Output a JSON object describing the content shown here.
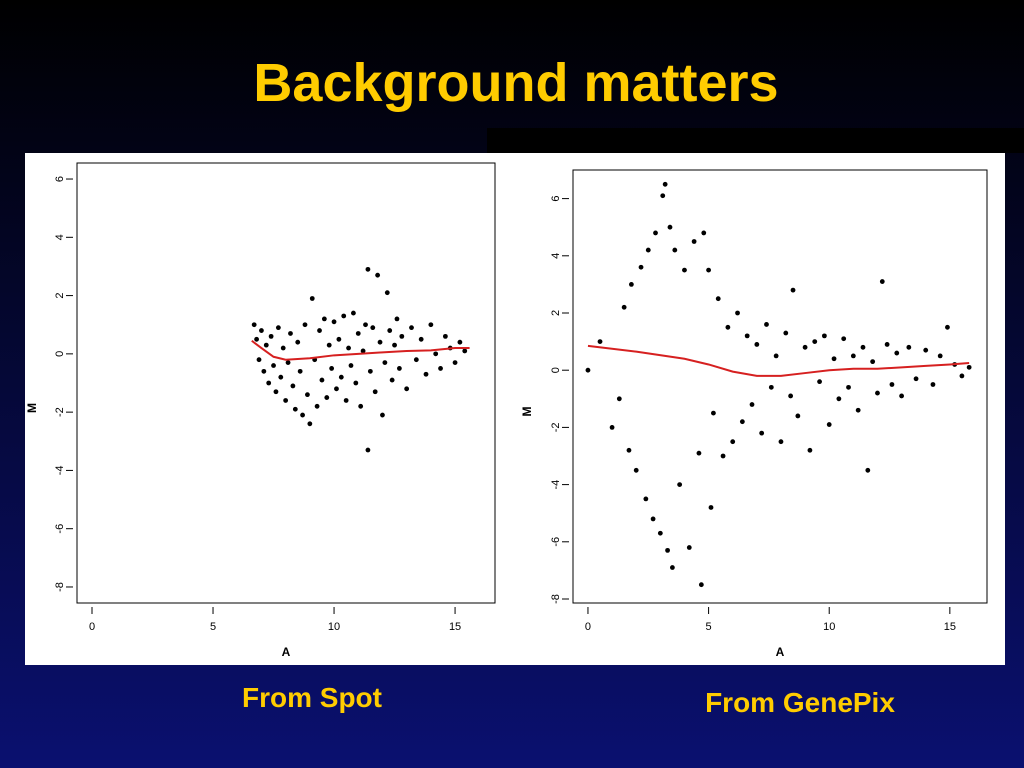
{
  "title": "Background matters",
  "captions": [
    "From Spot",
    "From GenePix"
  ],
  "chart_data": [
    {
      "type": "scatter",
      "xlabel": "A",
      "ylabel": "M",
      "xlim": [
        -0.62,
        16.65
      ],
      "ylim": [
        -8.55,
        6.55
      ],
      "xticks": [
        0,
        5,
        10,
        15
      ],
      "yticks": [
        -8,
        -6,
        -4,
        -2,
        0,
        2,
        4,
        6
      ],
      "series": [
        {
          "type": "scatter",
          "color": "#000000",
          "x": [
            6.7,
            6.8,
            6.9,
            7.0,
            7.1,
            7.2,
            7.3,
            7.4,
            7.5,
            7.6,
            7.7,
            7.8,
            7.9,
            8.0,
            8.1,
            8.2,
            8.3,
            8.4,
            8.5,
            8.6,
            8.7,
            8.8,
            8.9,
            9.0,
            9.1,
            9.2,
            9.3,
            9.4,
            9.5,
            9.6,
            9.7,
            9.8,
            9.9,
            10.0,
            10.1,
            10.2,
            10.3,
            10.4,
            10.5,
            10.6,
            10.7,
            10.8,
            10.9,
            11.0,
            11.1,
            11.2,
            11.3,
            11.4,
            11.4,
            11.5,
            11.6,
            11.7,
            11.8,
            11.9,
            12.0,
            12.1,
            12.2,
            12.3,
            12.4,
            12.5,
            12.6,
            12.7,
            12.8,
            13.0,
            13.2,
            13.4,
            13.6,
            13.8,
            14.0,
            14.2,
            14.4,
            14.6,
            14.8,
            15.0,
            15.2,
            15.4
          ],
          "values": [
            1.0,
            0.5,
            -0.2,
            0.8,
            -0.6,
            0.3,
            -1.0,
            0.6,
            -0.4,
            -1.3,
            0.9,
            -0.8,
            0.2,
            -1.6,
            -0.3,
            0.7,
            -1.1,
            -1.9,
            0.4,
            -0.6,
            -2.1,
            1.0,
            -1.4,
            -2.4,
            1.9,
            -0.2,
            -1.8,
            0.8,
            -0.9,
            1.2,
            -1.5,
            0.3,
            -0.5,
            1.1,
            -1.2,
            0.5,
            -0.8,
            1.3,
            -1.6,
            0.2,
            -0.4,
            1.4,
            -1.0,
            0.7,
            -1.8,
            0.1,
            1.0,
            2.9,
            -3.3,
            -0.6,
            0.9,
            -1.3,
            2.7,
            0.4,
            -2.1,
            -0.3,
            2.1,
            0.8,
            -0.9,
            0.3,
            1.2,
            -0.5,
            0.6,
            -1.2,
            0.9,
            -0.2,
            0.5,
            -0.7,
            1.0,
            0.0,
            -0.5,
            0.6,
            0.2,
            -0.3,
            0.4,
            0.1
          ]
        },
        {
          "type": "line",
          "color": "#d62020",
          "x": [
            6.6,
            7.0,
            7.5,
            8.0,
            9,
            10,
            11,
            12,
            13,
            14,
            15,
            15.6
          ],
          "values": [
            0.45,
            0.2,
            -0.1,
            -0.2,
            -0.15,
            -0.05,
            0.0,
            0.05,
            0.1,
            0.12,
            0.2,
            0.2
          ]
        }
      ]
    },
    {
      "type": "scatter",
      "xlabel": "A",
      "ylabel": "M",
      "xlim": [
        -0.62,
        16.54
      ],
      "ylim": [
        -8.14,
        7.0
      ],
      "xticks": [
        0,
        5,
        10,
        15
      ],
      "yticks": [
        -8,
        -6,
        -4,
        -2,
        0,
        2,
        4,
        6
      ],
      "series": [
        {
          "type": "scatter",
          "color": "#000000",
          "x": [
            0.0,
            0.5,
            1.0,
            1.3,
            1.5,
            1.7,
            1.8,
            2.0,
            2.2,
            2.4,
            2.5,
            2.7,
            2.8,
            3.0,
            3.1,
            3.2,
            3.3,
            3.5,
            3.4,
            3.6,
            3.8,
            4.0,
            4.2,
            4.4,
            4.6,
            4.7,
            4.8,
            5.0,
            5.1,
            5.2,
            5.4,
            5.6,
            5.8,
            6.0,
            6.2,
            6.4,
            6.6,
            6.8,
            7.0,
            7.2,
            7.4,
            7.6,
            7.8,
            8.0,
            8.2,
            8.4,
            8.5,
            8.7,
            9.0,
            9.2,
            9.4,
            9.6,
            9.8,
            10.0,
            10.2,
            10.4,
            10.6,
            10.8,
            11.0,
            11.2,
            11.4,
            11.6,
            11.8,
            12.0,
            12.2,
            12.4,
            12.6,
            12.8,
            13.0,
            13.3,
            13.6,
            14.0,
            14.3,
            14.6,
            14.9,
            15.2,
            15.5,
            15.8
          ],
          "values": [
            0.0,
            1.0,
            -2.0,
            -1.0,
            2.2,
            -2.8,
            3.0,
            -3.5,
            3.6,
            -4.5,
            4.2,
            -5.2,
            4.8,
            -5.7,
            6.1,
            6.5,
            -6.3,
            -6.9,
            5.0,
            4.2,
            -4.0,
            3.5,
            -6.2,
            4.5,
            -2.9,
            -7.5,
            4.8,
            3.5,
            -4.8,
            -1.5,
            2.5,
            -3.0,
            1.5,
            -2.5,
            2.0,
            -1.8,
            1.2,
            -1.2,
            0.9,
            -2.2,
            1.6,
            -0.6,
            0.5,
            -2.5,
            1.3,
            -0.9,
            2.8,
            -1.6,
            0.8,
            -2.8,
            1.0,
            -0.4,
            1.2,
            -1.9,
            0.4,
            -1.0,
            1.1,
            -0.6,
            0.5,
            -1.4,
            0.8,
            -3.5,
            0.3,
            -0.8,
            3.1,
            0.9,
            -0.5,
            0.6,
            -0.9,
            0.8,
            -0.3,
            0.7,
            -0.5,
            0.5,
            1.5,
            0.2,
            -0.2,
            0.1
          ]
        },
        {
          "type": "line",
          "color": "#d62020",
          "x": [
            0,
            2,
            4,
            5,
            6,
            7,
            8,
            9,
            10,
            11,
            12,
            13,
            14,
            15,
            15.8
          ],
          "values": [
            0.85,
            0.65,
            0.4,
            0.2,
            -0.05,
            -0.2,
            -0.2,
            -0.1,
            0.0,
            0.05,
            0.05,
            0.1,
            0.15,
            0.2,
            0.25
          ]
        }
      ]
    }
  ]
}
